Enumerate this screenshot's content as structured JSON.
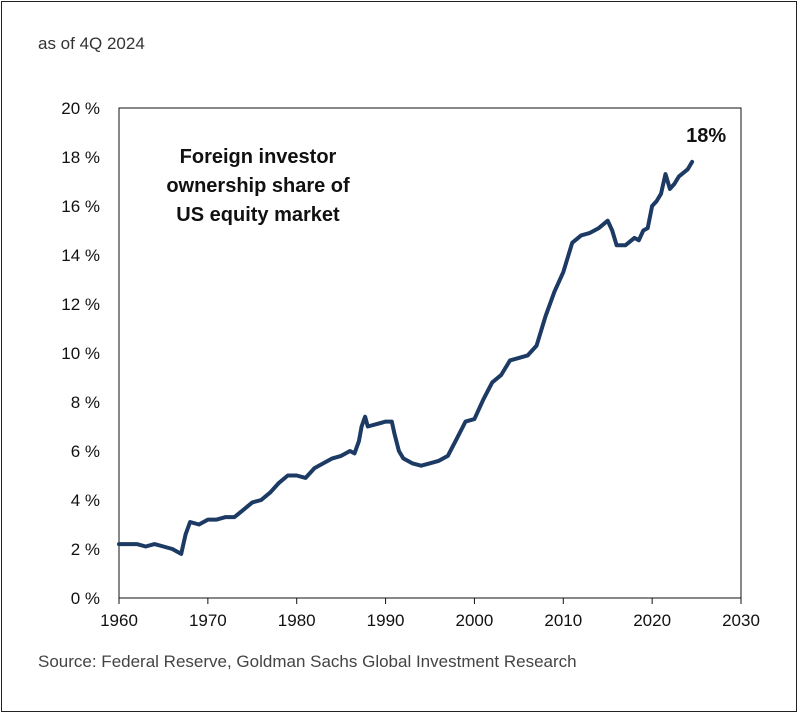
{
  "subtitle": "as of 4Q 2024",
  "source": "Source: Federal Reserve, Goldman Sachs Global Investment Research",
  "chart_data": {
    "type": "line",
    "title_lines": [
      "Foreign investor",
      "ownership share of",
      "US equity market"
    ],
    "end_label": "18%",
    "xlim": [
      1960,
      2030
    ],
    "ylim": [
      0,
      20
    ],
    "x_ticks": [
      1960,
      1970,
      1980,
      1990,
      2000,
      2010,
      2020,
      2030
    ],
    "y_ticks": [
      0,
      2,
      4,
      6,
      8,
      10,
      12,
      14,
      16,
      18,
      20
    ],
    "y_tick_labels": [
      "0 %",
      "2 %",
      "4 %",
      "6 %",
      "8 %",
      "10 %",
      "12 %",
      "14 %",
      "16 %",
      "18 %",
      "20 %"
    ],
    "x_tick_labels": [
      "1960",
      "1970",
      "1980",
      "1990",
      "2000",
      "2010",
      "2020",
      "2030"
    ],
    "grid": false,
    "line_color": "#1c3a63",
    "series": [
      {
        "x": [
          1960,
          1962,
          1963,
          1964,
          1965,
          1966,
          1966.5,
          1967,
          1967.5,
          1968,
          1969,
          1970,
          1971,
          1972,
          1973,
          1974,
          1975,
          1976,
          1977,
          1978,
          1979,
          1980,
          1981,
          1982,
          1983,
          1984,
          1985,
          1986,
          1986.5,
          1987,
          1987.3,
          1987.7,
          1988,
          1989,
          1990,
          1990.7,
          1991,
          1991.5,
          1992,
          1993,
          1994,
          1995,
          1996,
          1997,
          1998,
          1999,
          2000,
          2001,
          2002,
          2003,
          2004,
          2005,
          2006,
          2007,
          2008,
          2009,
          2010,
          2011,
          2012,
          2013,
          2014,
          2015,
          2015.5,
          2016,
          2017,
          2018,
          2018.5,
          2019,
          2019.5,
          2020,
          2020.5,
          2021,
          2021.5,
          2022,
          2022.5,
          2023,
          2024,
          2024.5
        ],
        "y": [
          2.2,
          2.2,
          2.1,
          2.2,
          2.1,
          2.0,
          1.9,
          1.8,
          2.6,
          3.1,
          3.0,
          3.2,
          3.2,
          3.3,
          3.3,
          3.6,
          3.9,
          4.0,
          4.3,
          4.7,
          5.0,
          5.0,
          4.9,
          5.3,
          5.5,
          5.7,
          5.8,
          6.0,
          5.9,
          6.4,
          7.0,
          7.4,
          7.0,
          7.1,
          7.2,
          7.2,
          6.7,
          6.0,
          5.7,
          5.5,
          5.4,
          5.5,
          5.6,
          5.8,
          6.5,
          7.2,
          7.3,
          8.1,
          8.8,
          9.1,
          9.7,
          9.8,
          9.9,
          10.3,
          11.5,
          12.5,
          13.3,
          14.5,
          14.8,
          14.9,
          15.1,
          15.4,
          15.0,
          14.4,
          14.4,
          14.7,
          14.6,
          15.0,
          15.1,
          16.0,
          16.2,
          16.5,
          17.3,
          16.7,
          16.9,
          17.2,
          17.5,
          17.8
        ]
      }
    ]
  }
}
